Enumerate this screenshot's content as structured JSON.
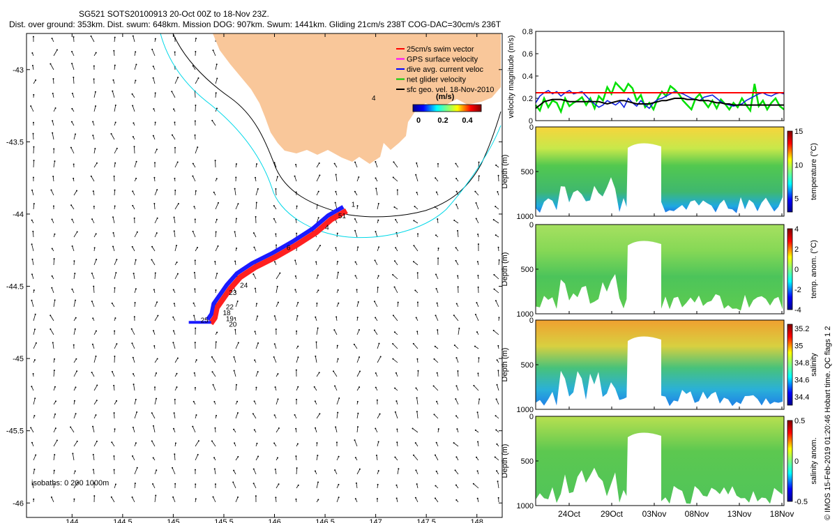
{
  "header": {
    "line1": "SG521 SOTS20100913 20-Oct 00Z to 18-Nov 23Z.",
    "line2": "Dist. over ground: 353km. Dist. swum: 648km. Mission DOG: 907km. Swum: 1441km. Gliding 21cm/s 238T COG-DAC=30cm/s 236T"
  },
  "colors": {
    "land": "#f9c79a",
    "isobath_200": "#000000",
    "isobath_1000": "#00d8e8",
    "track_dive": "#1a1aff",
    "track_swim": "#ff2020",
    "threshold_line": "#ff0000",
    "net_velocity": "#00e000",
    "dac_line": "#1020e0",
    "mean_line": "#000000"
  },
  "chart_data": [
    {
      "type": "scatter",
      "panel": "map",
      "x_ticks": [
        "144",
        "144.5",
        "145",
        "145.5",
        "146",
        "146.5",
        "147",
        "147.5",
        "148"
      ],
      "y_ticks": [
        "-43",
        "-43.5",
        "-44",
        "-44.5",
        "-45",
        "-45.5",
        "-46"
      ],
      "xlim": [
        143.55,
        148.25
      ],
      "ylim": [
        -46.1,
        -42.75
      ],
      "legend": [
        {
          "label": "25cm/s swim vector",
          "color": "#ff0000"
        },
        {
          "label": "GPS surface velocity",
          "color": "#ff00ff"
        },
        {
          "label": "dive avg. current veloc",
          "color": "#0000ff"
        },
        {
          "label": "net glider velocity",
          "color": "#00cc00"
        },
        {
          "label": "sfc geo. vel. 18-Nov-2010",
          "color": "#000000"
        }
      ],
      "colorbar": {
        "label": "(m/s)",
        "ticks": [
          "0",
          "0.2",
          "0.4"
        ]
      },
      "isobath_label": "isobaths: 0   200   1000m",
      "land_label": "4",
      "track": [
        {
          "lon": 146.7,
          "lat": -43.96
        },
        {
          "lon": 146.55,
          "lat": -44.02
        },
        {
          "lon": 146.4,
          "lat": -44.11
        },
        {
          "lon": 146.2,
          "lat": -44.2
        },
        {
          "lon": 146.0,
          "lat": -44.28
        },
        {
          "lon": 145.8,
          "lat": -44.35
        },
        {
          "lon": 145.65,
          "lat": -44.42
        },
        {
          "lon": 145.55,
          "lat": -44.5
        },
        {
          "lon": 145.48,
          "lat": -44.57
        },
        {
          "lon": 145.42,
          "lat": -44.63
        },
        {
          "lon": 145.4,
          "lat": -44.7
        },
        {
          "lon": 145.36,
          "lat": -44.74
        }
      ],
      "track_labels": [
        {
          "text": "1",
          "lon": 146.76,
          "lat": -43.95
        },
        {
          "text": "51",
          "lon": 146.63,
          "lat": -44.03
        },
        {
          "text": "4",
          "lon": 146.5,
          "lat": -44.11
        },
        {
          "text": "6",
          "lon": 146.12,
          "lat": -44.25
        },
        {
          "text": "24",
          "lon": 145.66,
          "lat": -44.51
        },
        {
          "text": "23",
          "lon": 145.55,
          "lat": -44.56
        },
        {
          "text": "22",
          "lon": 145.52,
          "lat": -44.66
        },
        {
          "text": "18",
          "lon": 145.49,
          "lat": -44.7
        },
        {
          "text": "19",
          "lon": 145.52,
          "lat": -44.74
        },
        {
          "text": "20",
          "lon": 145.55,
          "lat": -44.78
        },
        {
          "text": "25",
          "lon": 145.27,
          "lat": -44.75
        }
      ]
    },
    {
      "type": "line",
      "panel": "velocity",
      "ylabel": "velocity magnitude (m/s)",
      "y_ticks": [
        "0",
        "0.2",
        "0.4",
        "0.6",
        "0.8"
      ],
      "ylim": [
        0,
        0.8
      ],
      "threshold": 0.25,
      "series": [
        {
          "name": "net glider velocity",
          "values": [
            0.14,
            0.09,
            0.2,
            0.12,
            0.18,
            0.16,
            0.08,
            0.2,
            0.13,
            0.16,
            0.18,
            0.21,
            0.14,
            0.2,
            0.11,
            0.22,
            0.18,
            0.3,
            0.24,
            0.34,
            0.3,
            0.26,
            0.33,
            0.29,
            0.18,
            0.23,
            0.12,
            0.16,
            0.1,
            0.2,
            0.26,
            0.22,
            0.31,
            0.28,
            0.24,
            0.18,
            0.14,
            0.1,
            0.2,
            0.24,
            0.17,
            0.12,
            0.18,
            0.11,
            0.19,
            0.15,
            0.1,
            0.16,
            0.12,
            0.2,
            0.14,
            0.09,
            0.33,
            0.13,
            0.18,
            0.1,
            0.16,
            0.2,
            0.13,
            0.1
          ]
        },
        {
          "name": "dive avg. current veloc",
          "values": [
            0.16,
            0.22,
            0.25,
            0.27,
            0.24,
            0.26,
            0.22,
            0.25,
            0.27,
            0.24,
            0.25,
            0.26,
            0.22,
            0.18,
            0.15,
            0.12,
            0.14,
            0.18,
            0.16,
            0.14,
            0.17,
            0.12,
            0.2,
            0.16,
            0.13,
            0.18,
            0.14,
            0.11,
            0.16,
            0.19,
            0.2,
            0.22,
            0.24,
            0.26,
            0.25,
            0.24,
            0.22,
            0.2,
            0.19,
            0.18,
            0.21,
            0.22,
            0.23,
            0.2,
            0.17,
            0.15,
            0.14,
            0.13,
            0.14,
            0.15,
            0.18,
            0.2,
            0.22,
            0.24,
            0.25,
            0.23,
            0.22,
            0.24,
            0.25,
            0.24
          ]
        },
        {
          "name": "mean",
          "values": [
            0.11,
            0.14,
            0.17,
            0.18,
            0.19,
            0.19,
            0.19,
            0.18,
            0.17,
            0.17,
            0.17,
            0.17,
            0.17,
            0.17,
            0.17,
            0.17,
            0.16,
            0.15,
            0.16,
            0.17,
            0.18,
            0.18,
            0.17,
            0.16,
            0.15,
            0.15,
            0.15,
            0.15,
            0.16,
            0.17,
            0.18,
            0.18,
            0.19,
            0.2,
            0.2,
            0.2,
            0.19,
            0.19,
            0.19,
            0.18,
            0.18,
            0.18,
            0.17,
            0.16,
            0.16,
            0.15,
            0.15,
            0.14,
            0.14,
            0.14,
            0.14,
            0.14,
            0.14,
            0.14,
            0.14,
            0.14,
            0.14,
            0.14,
            0.14,
            0.14
          ]
        }
      ]
    },
    {
      "type": "heatmap",
      "panel": "temperature",
      "ylabel": "Depth (m)",
      "y_ticks": [
        "0",
        "500",
        "1000"
      ],
      "cbar_label": "temperature (°C)",
      "cbar_ticks": [
        "5",
        "10",
        "15"
      ],
      "clim": [
        3,
        15
      ]
    },
    {
      "type": "heatmap",
      "panel": "temperature_anomaly",
      "ylabel": "Depth (m)",
      "y_ticks": [
        "0",
        "500",
        "1000"
      ],
      "cbar_label": "temp. anom. (°C)",
      "cbar_ticks": [
        "4",
        "2",
        "0",
        "-2",
        "-4"
      ],
      "clim": [
        -4,
        4
      ]
    },
    {
      "type": "heatmap",
      "panel": "salinity",
      "ylabel": "Depth (m)",
      "y_ticks": [
        "0",
        "500",
        "1000"
      ],
      "cbar_label": "salinity",
      "cbar_ticks": [
        "35.2",
        "35",
        "34.8",
        "34.6",
        "34.4"
      ],
      "clim": [
        34.3,
        35.25
      ]
    },
    {
      "type": "heatmap",
      "panel": "salinity_anomaly",
      "ylabel": "Depth (m)",
      "y_ticks": [
        "0",
        "500",
        "1000"
      ],
      "cbar_label": "salinity anom.",
      "cbar_ticks": [
        "0.5",
        "0",
        "-0.5"
      ],
      "clim": [
        -0.5,
        0.5
      ],
      "x_ticks": [
        "24Oct",
        "29Oct",
        "03Nov",
        "08Nov",
        "13Nov",
        "18Nov"
      ]
    }
  ],
  "side_note": "© IMOS 15-Feb-2019 01:20:46 Hobart time. QC flags 1  2"
}
